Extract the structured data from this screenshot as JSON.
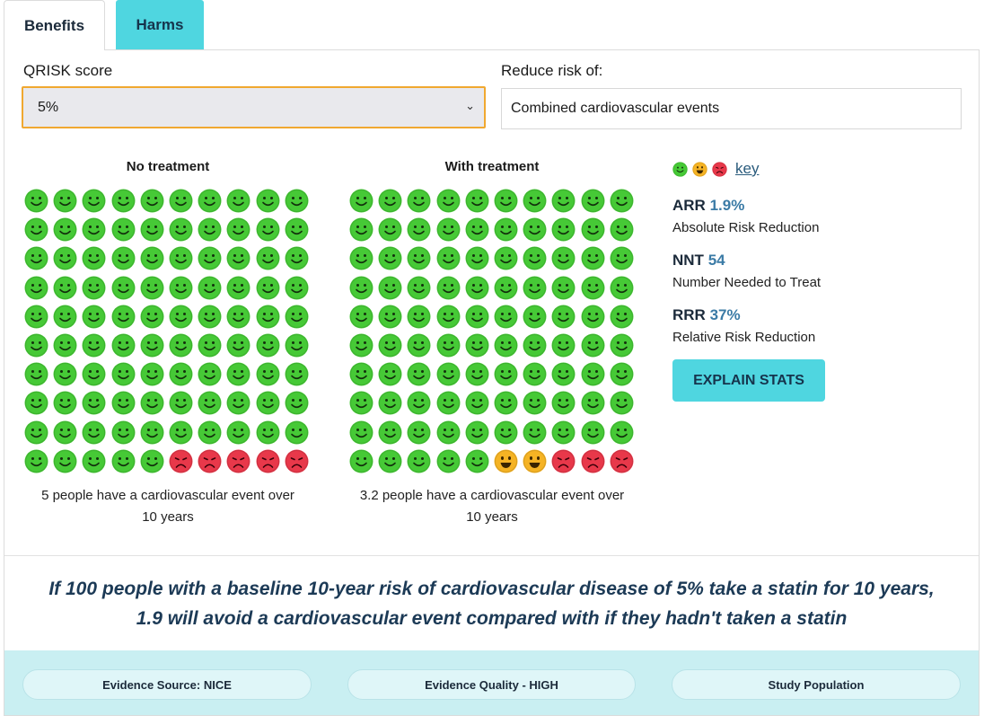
{
  "tabs": [
    {
      "label": "Benefits",
      "active": true
    },
    {
      "label": "Harms",
      "active": false
    }
  ],
  "qrisk": {
    "label": "QRISK score",
    "selected": "5%"
  },
  "reduce_risk": {
    "label": "Reduce risk of:",
    "value": "Combined cardiovascular events"
  },
  "no_treatment": {
    "title": "No treatment",
    "happy": 95,
    "neutral": 0,
    "sad": 5,
    "caption_line1": "5 people have a cardiovascular event over",
    "caption_line2": "10 years"
  },
  "with_treatment": {
    "title": "With treatment",
    "happy": 95,
    "neutral": 2,
    "sad": 3,
    "caption_line1": "3.2 people have a cardiovascular event over",
    "caption_line2": "10 years"
  },
  "key": {
    "link_label": "key",
    "icons": [
      "happy-face-icon",
      "neutral-face-icon",
      "sad-face-icon"
    ]
  },
  "stats": {
    "arr": {
      "abbr": "ARR",
      "value": "1.9%",
      "desc": "Absolute Risk Reduction"
    },
    "nnt": {
      "abbr": "NNT",
      "value": "54",
      "desc": "Number Needed to Treat"
    },
    "rrr": {
      "abbr": "RRR",
      "value": "37%",
      "desc": "Relative Risk Reduction"
    }
  },
  "explain_button": "EXPLAIN STATS",
  "summary": {
    "line1": "If 100 people with a baseline 10-year risk of cardiovascular disease of 5% take a statin for 10 years,",
    "line2": "1.9 will avoid a cardiovascular event compared with if they hadn't taken a statin"
  },
  "footer": [
    {
      "label": "Evidence Source: NICE"
    },
    {
      "label": "Evidence Quality - HIGH"
    },
    {
      "label": "Study Population"
    }
  ],
  "colors": {
    "happy": "#46c936",
    "neutral": "#f5b324",
    "sad": "#e8384a",
    "accent": "#4fd6e0",
    "select_border": "#f0a830",
    "stat_value": "#3b7ba6",
    "summary_text": "#1c3a56",
    "footer_bg": "#c9eff2"
  }
}
